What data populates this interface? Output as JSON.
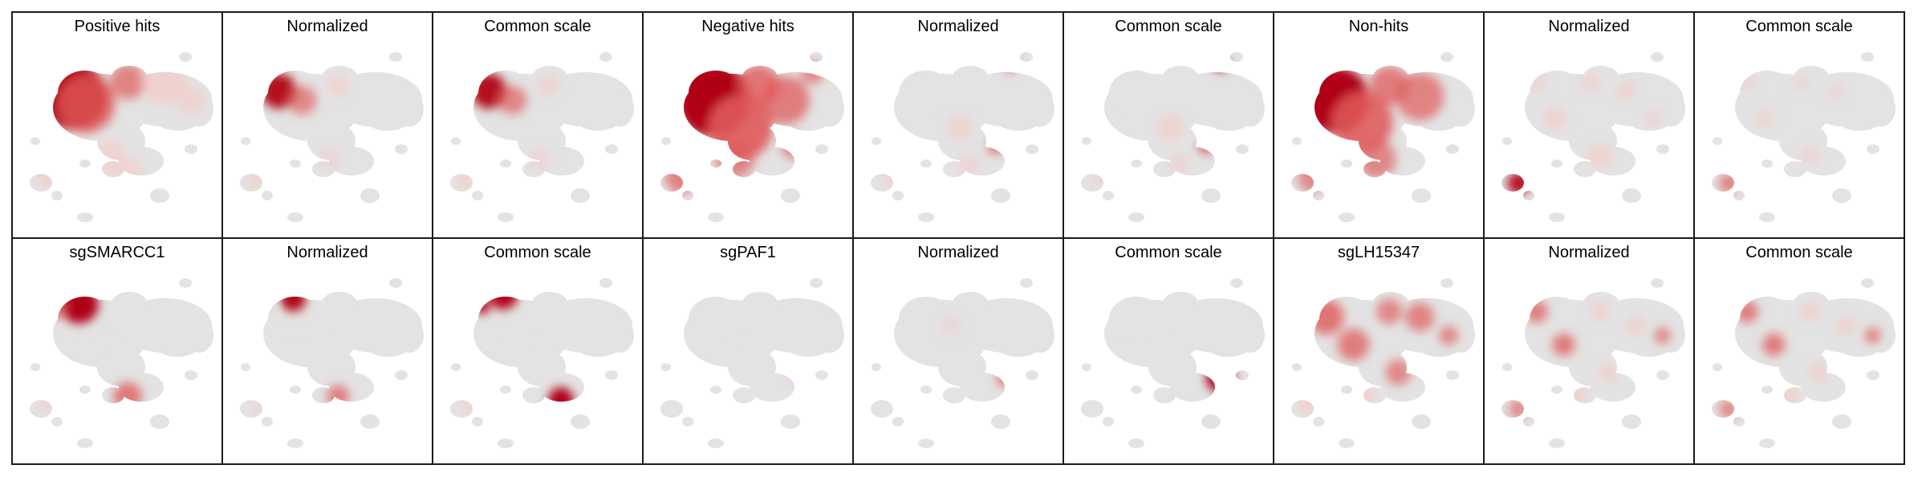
{
  "figure": {
    "colors": {
      "background_cells": "#e3e3e3",
      "density_high": "#b00012",
      "density_mid": "#e05a5a",
      "density_low": "#f6c9c4",
      "border": "#1a1a1a"
    },
    "panels": [
      {
        "title": "Positive hits",
        "hotspots": [
          [
            0.25,
            0.28,
            1.0,
            42
          ],
          [
            0.32,
            0.32,
            0.7,
            36
          ],
          [
            0.55,
            0.2,
            0.55,
            22
          ],
          [
            0.75,
            0.2,
            0.45,
            28
          ],
          [
            0.9,
            0.3,
            0.4,
            18
          ],
          [
            0.12,
            0.7,
            0.4,
            18
          ],
          [
            0.45,
            0.6,
            0.35,
            20
          ],
          [
            0.55,
            0.7,
            0.3,
            20
          ],
          [
            0.4,
            0.85,
            0.25,
            12
          ]
        ]
      },
      {
        "title": "Normalized",
        "hotspots": [
          [
            0.22,
            0.25,
            0.9,
            22
          ],
          [
            0.35,
            0.3,
            0.5,
            18
          ],
          [
            0.55,
            0.22,
            0.3,
            14
          ],
          [
            0.1,
            0.72,
            0.35,
            14
          ],
          [
            0.5,
            0.62,
            0.25,
            14
          ]
        ]
      },
      {
        "title": "Common scale",
        "hotspots": [
          [
            0.22,
            0.25,
            0.9,
            22
          ],
          [
            0.35,
            0.3,
            0.5,
            18
          ],
          [
            0.55,
            0.22,
            0.3,
            14
          ],
          [
            0.1,
            0.72,
            0.35,
            14
          ],
          [
            0.5,
            0.62,
            0.25,
            14
          ]
        ]
      },
      {
        "title": "Negative hits",
        "hotspots": [
          [
            0.3,
            0.3,
            1.0,
            46
          ],
          [
            0.45,
            0.45,
            0.85,
            40
          ],
          [
            0.55,
            0.22,
            0.7,
            26
          ],
          [
            0.7,
            0.3,
            0.6,
            30
          ],
          [
            0.85,
            0.15,
            0.55,
            14
          ],
          [
            0.75,
            0.55,
            0.55,
            16
          ],
          [
            0.12,
            0.72,
            0.55,
            20
          ],
          [
            0.42,
            0.62,
            0.5,
            24
          ],
          [
            0.48,
            0.88,
            0.4,
            12
          ]
        ]
      },
      {
        "title": "Normalized",
        "hotspots": [
          [
            0.78,
            0.1,
            0.85,
            10
          ],
          [
            0.7,
            0.55,
            0.7,
            10
          ],
          [
            0.5,
            0.45,
            0.45,
            16
          ],
          [
            0.12,
            0.72,
            0.35,
            12
          ],
          [
            0.55,
            0.65,
            0.25,
            14
          ]
        ]
      },
      {
        "title": "Common scale",
        "hotspots": [
          [
            0.78,
            0.1,
            0.9,
            10
          ],
          [
            0.7,
            0.55,
            0.8,
            10
          ],
          [
            0.5,
            0.45,
            0.4,
            16
          ],
          [
            0.12,
            0.72,
            0.3,
            12
          ],
          [
            0.55,
            0.65,
            0.25,
            14
          ]
        ]
      },
      {
        "title": "Non-hits",
        "hotspots": [
          [
            0.25,
            0.3,
            1.0,
            42
          ],
          [
            0.4,
            0.42,
            0.8,
            38
          ],
          [
            0.55,
            0.22,
            0.6,
            24
          ],
          [
            0.72,
            0.28,
            0.55,
            30
          ],
          [
            0.8,
            0.55,
            0.45,
            14
          ],
          [
            0.12,
            0.72,
            0.5,
            18
          ],
          [
            0.48,
            0.62,
            0.5,
            24
          ],
          [
            0.42,
            0.85,
            0.35,
            12
          ]
        ]
      },
      {
        "title": "Normalized",
        "hotspots": [
          [
            0.1,
            0.75,
            0.9,
            14
          ],
          [
            0.3,
            0.4,
            0.45,
            14
          ],
          [
            0.5,
            0.2,
            0.35,
            12
          ],
          [
            0.7,
            0.25,
            0.35,
            12
          ],
          [
            0.85,
            0.4,
            0.4,
            10
          ],
          [
            0.2,
            0.2,
            0.3,
            12
          ],
          [
            0.55,
            0.6,
            0.35,
            16
          ],
          [
            0.4,
            0.85,
            0.3,
            10
          ]
        ]
      },
      {
        "title": "Common scale",
        "hotspots": [
          [
            0.1,
            0.75,
            0.6,
            12
          ],
          [
            0.3,
            0.4,
            0.3,
            12
          ],
          [
            0.5,
            0.2,
            0.25,
            10
          ],
          [
            0.7,
            0.25,
            0.25,
            10
          ],
          [
            0.2,
            0.2,
            0.25,
            10
          ],
          [
            0.55,
            0.6,
            0.25,
            12
          ]
        ]
      },
      {
        "title": "sgSMARCC1",
        "hotspots": [
          [
            0.28,
            0.18,
            1.0,
            24
          ],
          [
            0.15,
            0.2,
            0.5,
            14
          ],
          [
            0.55,
            0.68,
            0.65,
            18
          ],
          [
            0.1,
            0.72,
            0.3,
            12
          ]
        ]
      },
      {
        "title": "Normalized",
        "hotspots": [
          [
            0.3,
            0.15,
            0.95,
            16
          ],
          [
            0.15,
            0.2,
            0.4,
            10
          ],
          [
            0.55,
            0.68,
            0.6,
            14
          ],
          [
            0.12,
            0.75,
            0.3,
            10
          ]
        ]
      },
      {
        "title": "Common scale",
        "hotspots": [
          [
            0.3,
            0.13,
            1.0,
            18
          ],
          [
            0.18,
            0.19,
            0.95,
            10
          ],
          [
            0.1,
            0.6,
            0.9,
            8
          ],
          [
            0.62,
            0.7,
            1.0,
            16
          ],
          [
            0.12,
            0.75,
            0.45,
            10
          ]
        ]
      },
      {
        "title": "sgPAF1",
        "hotspots": [
          [
            0.75,
            0.58,
            0.45,
            10
          ]
        ]
      },
      {
        "title": "Normalized",
        "hotspots": [
          [
            0.75,
            0.58,
            0.75,
            10
          ],
          [
            0.45,
            0.3,
            0.2,
            12
          ]
        ]
      },
      {
        "title": "Common scale",
        "hotspots": [
          [
            0.78,
            0.58,
            1.0,
            18
          ]
        ]
      },
      {
        "title": "sgLH15347",
        "hotspots": [
          [
            0.2,
            0.25,
            0.7,
            22
          ],
          [
            0.35,
            0.4,
            0.6,
            20
          ],
          [
            0.55,
            0.22,
            0.5,
            16
          ],
          [
            0.72,
            0.25,
            0.55,
            18
          ],
          [
            0.88,
            0.35,
            0.5,
            12
          ],
          [
            0.6,
            0.55,
            0.5,
            16
          ],
          [
            0.1,
            0.72,
            0.45,
            14
          ],
          [
            0.4,
            0.68,
            0.45,
            16
          ],
          [
            0.55,
            0.82,
            0.4,
            12
          ]
        ]
      },
      {
        "title": "Normalized",
        "hotspots": [
          [
            0.2,
            0.22,
            0.6,
            14
          ],
          [
            0.35,
            0.4,
            0.65,
            14
          ],
          [
            0.55,
            0.22,
            0.45,
            12
          ],
          [
            0.75,
            0.3,
            0.45,
            12
          ],
          [
            0.9,
            0.35,
            0.55,
            10
          ],
          [
            0.6,
            0.55,
            0.45,
            12
          ],
          [
            0.1,
            0.75,
            0.5,
            12
          ],
          [
            0.42,
            0.68,
            0.45,
            14
          ],
          [
            0.55,
            0.82,
            0.4,
            10
          ]
        ]
      },
      {
        "title": "Common scale",
        "hotspots": [
          [
            0.2,
            0.22,
            0.6,
            14
          ],
          [
            0.35,
            0.4,
            0.65,
            14
          ],
          [
            0.55,
            0.22,
            0.45,
            12
          ],
          [
            0.75,
            0.3,
            0.45,
            12
          ],
          [
            0.9,
            0.35,
            0.55,
            10
          ],
          [
            0.6,
            0.55,
            0.45,
            12
          ],
          [
            0.1,
            0.75,
            0.5,
            12
          ],
          [
            0.42,
            0.68,
            0.45,
            14
          ],
          [
            0.55,
            0.82,
            0.4,
            10
          ]
        ]
      }
    ]
  }
}
